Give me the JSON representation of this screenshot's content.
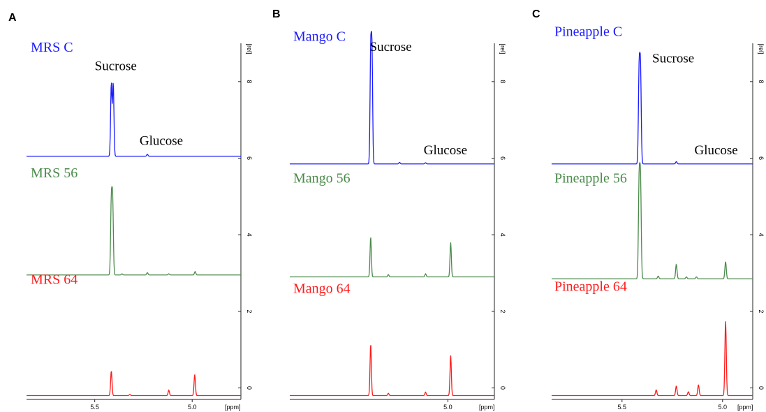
{
  "chart_data": [
    {
      "panel": "A",
      "type": "line",
      "xlabel": "[ppm]",
      "ylabel": "[rel]",
      "xlim": [
        5.85,
        4.75
      ],
      "ylim": [
        -0.3,
        9.0
      ],
      "xticks": [
        {
          "v": 5.5,
          "label": "5.5"
        },
        {
          "v": 5.0,
          "label": "5.0"
        }
      ],
      "yticks": [
        {
          "v": 0,
          "label": "0"
        },
        {
          "v": 2,
          "label": "2"
        },
        {
          "v": 4,
          "label": "4"
        },
        {
          "v": 6,
          "label": "6"
        },
        {
          "v": 8,
          "label": "8"
        }
      ],
      "series": [
        {
          "name": "MRS C",
          "color": "#1a1aff",
          "baseline": 6.05,
          "peaks": [
            {
              "x": 5.42,
              "h": 0.02
            },
            {
              "x": 5.415,
              "h": 1.9
            },
            {
              "x": 5.405,
              "h": 1.9
            },
            {
              "x": 5.23,
              "h": 0.05
            }
          ]
        },
        {
          "name": "MRS 56",
          "color": "#4a8a4a",
          "baseline": 2.95,
          "peaks": [
            {
              "x": 5.415,
              "h": 1.9
            },
            {
              "x": 5.408,
              "h": 1.9
            },
            {
              "x": 5.36,
              "h": 0.03
            },
            {
              "x": 5.23,
              "h": 0.06
            },
            {
              "x": 5.12,
              "h": 0.03
            },
            {
              "x": 4.985,
              "h": 0.09
            }
          ]
        },
        {
          "name": "MRS 64",
          "color": "#ff1a1a",
          "baseline": -0.2,
          "peaks": [
            {
              "x": 5.415,
              "h": 0.65
            },
            {
              "x": 5.32,
              "h": 0.03
            },
            {
              "x": 5.12,
              "h": 0.14
            },
            {
              "x": 4.987,
              "h": 0.55
            }
          ]
        }
      ],
      "annotations": [
        {
          "text": "Sucrose",
          "x": 5.5,
          "y": 8.3
        },
        {
          "text": "Glucose",
          "x": 5.27,
          "y": 6.35
        }
      ]
    },
    {
      "panel": "B",
      "type": "line",
      "xlabel": "[ppm]",
      "ylabel": "[rel]",
      "xlim": [
        5.85,
        4.75
      ],
      "ylim": [
        -0.3,
        9.0
      ],
      "xticks": [
        {
          "v": 5.0,
          "label": "5.0"
        }
      ],
      "yticks": [
        {
          "v": 0,
          "label": "0"
        },
        {
          "v": 2,
          "label": "2"
        },
        {
          "v": 4,
          "label": "4"
        },
        {
          "v": 6,
          "label": "6"
        },
        {
          "v": 8,
          "label": "8"
        }
      ],
      "series": [
        {
          "name": "Mango C",
          "color": "#1a1aff",
          "baseline": 5.85,
          "peaks": [
            {
              "x": 5.415,
              "h": 2.85
            },
            {
              "x": 5.408,
              "h": 2.85
            },
            {
              "x": 5.26,
              "h": 0.04
            },
            {
              "x": 5.12,
              "h": 0.03
            }
          ]
        },
        {
          "name": "Mango 56",
          "color": "#4a8a4a",
          "baseline": 2.9,
          "peaks": [
            {
              "x": 5.415,
              "h": 1.05
            },
            {
              "x": 5.32,
              "h": 0.06
            },
            {
              "x": 5.12,
              "h": 0.08
            },
            {
              "x": 4.985,
              "h": 0.9
            }
          ]
        },
        {
          "name": "Mango 64",
          "color": "#ff1a1a",
          "baseline": -0.2,
          "peaks": [
            {
              "x": 5.415,
              "h": 1.35
            },
            {
              "x": 5.32,
              "h": 0.06
            },
            {
              "x": 5.12,
              "h": 0.09
            },
            {
              "x": 4.985,
              "h": 1.05
            }
          ]
        }
      ],
      "annotations": [
        {
          "text": "Sucrose",
          "x": 5.42,
          "y": 8.8
        },
        {
          "text": "Glucose",
          "x": 5.13,
          "y": 6.1
        }
      ]
    },
    {
      "panel": "C",
      "type": "line",
      "xlabel": "[ppm]",
      "ylabel": "[rel]",
      "xlim": [
        5.85,
        4.85
      ],
      "ylim": [
        -0.3,
        9.0
      ],
      "xticks": [
        {
          "v": 5.5,
          "label": "5.5"
        },
        {
          "v": 5.0,
          "label": "5.0"
        }
      ],
      "yticks": [
        {
          "v": 0,
          "label": "0"
        },
        {
          "v": 2,
          "label": "2"
        },
        {
          "v": 4,
          "label": "4"
        },
        {
          "v": 6,
          "label": "6"
        },
        {
          "v": 8,
          "label": "8"
        }
      ],
      "series": [
        {
          "name": "Pineapple C",
          "color": "#1a1aff",
          "baseline": 5.85,
          "peaks": [
            {
              "x": 5.415,
              "h": 2.4
            },
            {
              "x": 5.408,
              "h": 2.4
            },
            {
              "x": 5.23,
              "h": 0.06
            }
          ]
        },
        {
          "name": "Pineapple 56",
          "color": "#4a8a4a",
          "baseline": 2.85,
          "peaks": [
            {
              "x": 5.415,
              "h": 2.5
            },
            {
              "x": 5.408,
              "h": 2.5
            },
            {
              "x": 5.32,
              "h": 0.07
            },
            {
              "x": 5.23,
              "h": 0.38
            },
            {
              "x": 5.18,
              "h": 0.05
            },
            {
              "x": 5.13,
              "h": 0.05
            },
            {
              "x": 4.985,
              "h": 0.45
            }
          ]
        },
        {
          "name": "Pineapple 64",
          "color": "#ff1a1a",
          "baseline": -0.2,
          "peaks": [
            {
              "x": 5.33,
              "h": 0.15
            },
            {
              "x": 5.23,
              "h": 0.25
            },
            {
              "x": 5.17,
              "h": 0.1
            },
            {
              "x": 5.12,
              "h": 0.28
            },
            {
              "x": 4.985,
              "h": 1.95
            }
          ]
        }
      ],
      "annotations": [
        {
          "text": "Sucrose",
          "x": 5.35,
          "y": 8.5
        },
        {
          "text": "Glucose",
          "x": 5.14,
          "y": 6.1
        }
      ]
    }
  ]
}
